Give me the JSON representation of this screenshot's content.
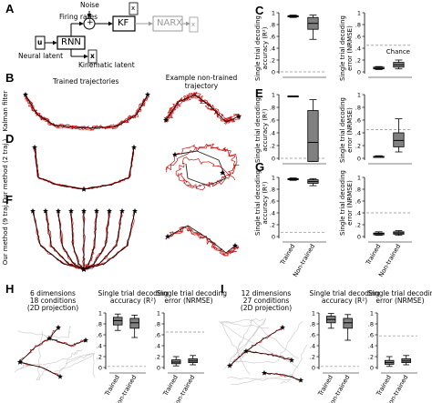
{
  "panels": {
    "A": {
      "label": "A",
      "diagram": {
        "neural_latent_symbol": "u",
        "neural_latent_label": "Neural latent",
        "rnn_label": "RNN",
        "firing_rates_label": "Firing rates",
        "noise_label": "Noise",
        "kf_label": "KF",
        "narx_label": "NARX",
        "kinematic_latent_symbol": "x",
        "kinematic_latent_label": "Kinematic latent",
        "plus_symbol": "+"
      }
    },
    "B": {
      "label": "B",
      "row_label": "Kalman filter"
    },
    "C": {
      "label": "C"
    },
    "D": {
      "label": "D",
      "row_label": "Our method (2 traj.)"
    },
    "E": {
      "label": "E"
    },
    "F": {
      "label": "F",
      "row_label": "Our method (9 traj.)"
    },
    "G": {
      "label": "G"
    },
    "H": {
      "label": "H",
      "description": [
        "6 dimensions",
        "18 conditions",
        "(2D projection)"
      ]
    },
    "I": {
      "label": "I",
      "description": [
        "12 dimensions",
        "27 conditions",
        "(2D projection)"
      ]
    }
  },
  "column_titles": {
    "trained": "Trained trajectories",
    "nontrained": [
      "Example non-trained",
      "trajectory"
    ]
  },
  "axes": {
    "accuracy_label": [
      "Single trial decoding",
      "accuracy (R²)"
    ],
    "error_label": [
      "Single trial decoding",
      "error (NRMSE)"
    ],
    "y_ticks": [
      "0",
      ".2",
      ".4",
      ".6",
      ".8",
      "1"
    ],
    "chance_label": "Chance",
    "categories": [
      "Trained",
      "Non-trained"
    ]
  },
  "colors": {
    "trained": "#cc1111",
    "nontrained": "#222222",
    "box": "#808080",
    "chance": "#aaaaaa"
  },
  "chart_data": [
    {
      "id": "C-accuracy",
      "type": "box",
      "title": "",
      "ylabel": "Single trial decoding accuracy (R²)",
      "ylim": [
        0,
        1
      ],
      "categories": [
        "Trained",
        "Non-trained"
      ],
      "boxes": [
        {
          "whislo": 0.92,
          "q1": 0.93,
          "med": 0.94,
          "q3": 0.95,
          "whishi": 0.96
        },
        {
          "whislo": 0.55,
          "q1": 0.72,
          "med": 0.82,
          "q3": 0.92,
          "whishi": 0.96
        }
      ],
      "chance": 0.0
    },
    {
      "id": "C-error",
      "type": "box",
      "title": "",
      "ylabel": "Single trial decoding error (NRMSE)",
      "ylim": [
        0,
        1
      ],
      "categories": [
        "Trained",
        "Non-trained"
      ],
      "boxes": [
        {
          "whislo": 0.04,
          "q1": 0.05,
          "med": 0.06,
          "q3": 0.08,
          "whishi": 0.09
        },
        {
          "whislo": 0.05,
          "q1": 0.08,
          "med": 0.12,
          "q3": 0.16,
          "whishi": 0.2
        }
      ],
      "chance": 0.45,
      "chance_label_shown": true
    },
    {
      "id": "E-accuracy",
      "type": "box",
      "title": "",
      "ylabel": "Single trial decoding accuracy (R²)",
      "ylim": [
        0,
        1
      ],
      "categories": [
        "Trained",
        "Non-trained"
      ],
      "boxes": [
        {
          "whislo": 0.97,
          "q1": 0.97,
          "med": 0.97,
          "q3": 0.98,
          "whishi": 0.98
        },
        {
          "whislo": -0.05,
          "q1": -0.05,
          "med": 0.25,
          "q3": 0.75,
          "whishi": 0.92
        }
      ],
      "chance": 0.0
    },
    {
      "id": "E-error",
      "type": "box",
      "title": "",
      "ylabel": "Single trial decoding error (NRMSE)",
      "ylim": [
        0,
        1
      ],
      "categories": [
        "Trained",
        "Non-trained"
      ],
      "boxes": [
        {
          "whislo": 0.02,
          "q1": 0.02,
          "med": 0.03,
          "q3": 0.03,
          "whishi": 0.04
        },
        {
          "whislo": 0.1,
          "q1": 0.18,
          "med": 0.28,
          "q3": 0.4,
          "whishi": 0.62
        }
      ],
      "chance": 0.45
    },
    {
      "id": "G-accuracy",
      "type": "box",
      "title": "",
      "ylabel": "Single trial decoding accuracy (R²)",
      "ylim": [
        0,
        1
      ],
      "categories": [
        "Trained",
        "Non-trained"
      ],
      "boxes": [
        {
          "whislo": 0.95,
          "q1": 0.96,
          "med": 0.97,
          "q3": 0.98,
          "whishi": 0.99
        },
        {
          "whislo": 0.86,
          "q1": 0.9,
          "med": 0.93,
          "q3": 0.96,
          "whishi": 0.98
        }
      ],
      "chance": 0.07
    },
    {
      "id": "G-error",
      "type": "box",
      "title": "",
      "ylabel": "Single trial decoding error (NRMSE)",
      "ylim": [
        0,
        1
      ],
      "categories": [
        "Trained",
        "Non-trained"
      ],
      "boxes": [
        {
          "whislo": 0.02,
          "q1": 0.03,
          "med": 0.05,
          "q3": 0.06,
          "whishi": 0.08
        },
        {
          "whislo": 0.02,
          "q1": 0.04,
          "med": 0.06,
          "q3": 0.08,
          "whishi": 0.1
        }
      ],
      "chance": 0.4
    },
    {
      "id": "H-accuracy",
      "type": "box",
      "title": "Single trial decoding accuracy (R²)",
      "ylim": [
        0,
        1
      ],
      "categories": [
        "Trained",
        "Non-trained"
      ],
      "boxes": [
        {
          "whislo": 0.68,
          "q1": 0.78,
          "med": 0.86,
          "q3": 0.92,
          "whishi": 0.98
        },
        {
          "whislo": 0.55,
          "q1": 0.72,
          "med": 0.82,
          "q3": 0.9,
          "whishi": 0.96
        }
      ],
      "chance": 0.02
    },
    {
      "id": "H-error",
      "type": "box",
      "title": "Single trial decoding error (NRMSE)",
      "ylim": [
        0,
        1
      ],
      "categories": [
        "Trained",
        "Non-trained"
      ],
      "boxes": [
        {
          "whislo": 0.03,
          "q1": 0.07,
          "med": 0.1,
          "q3": 0.14,
          "whishi": 0.2
        },
        {
          "whislo": 0.05,
          "q1": 0.09,
          "med": 0.12,
          "q3": 0.16,
          "whishi": 0.22
        }
      ],
      "chance": 0.65
    },
    {
      "id": "I-accuracy",
      "type": "box",
      "title": "Single trial decoding accuracy (R²)",
      "ylim": [
        0,
        1
      ],
      "categories": [
        "Trained",
        "Non-trained"
      ],
      "boxes": [
        {
          "whislo": 0.72,
          "q1": 0.82,
          "med": 0.88,
          "q3": 0.94,
          "whishi": 0.99
        },
        {
          "whislo": 0.5,
          "q1": 0.72,
          "med": 0.82,
          "q3": 0.9,
          "whishi": 0.97
        }
      ],
      "chance": 0.02
    },
    {
      "id": "I-error",
      "type": "box",
      "title": "Single trial decoding error (NRMSE)",
      "ylim": [
        0,
        1
      ],
      "categories": [
        "Trained",
        "Non-trained"
      ],
      "boxes": [
        {
          "whislo": 0.02,
          "q1": 0.06,
          "med": 0.09,
          "q3": 0.13,
          "whishi": 0.2
        },
        {
          "whislo": 0.05,
          "q1": 0.09,
          "med": 0.12,
          "q3": 0.16,
          "whishi": 0.22
        }
      ],
      "chance": 0.58
    }
  ]
}
